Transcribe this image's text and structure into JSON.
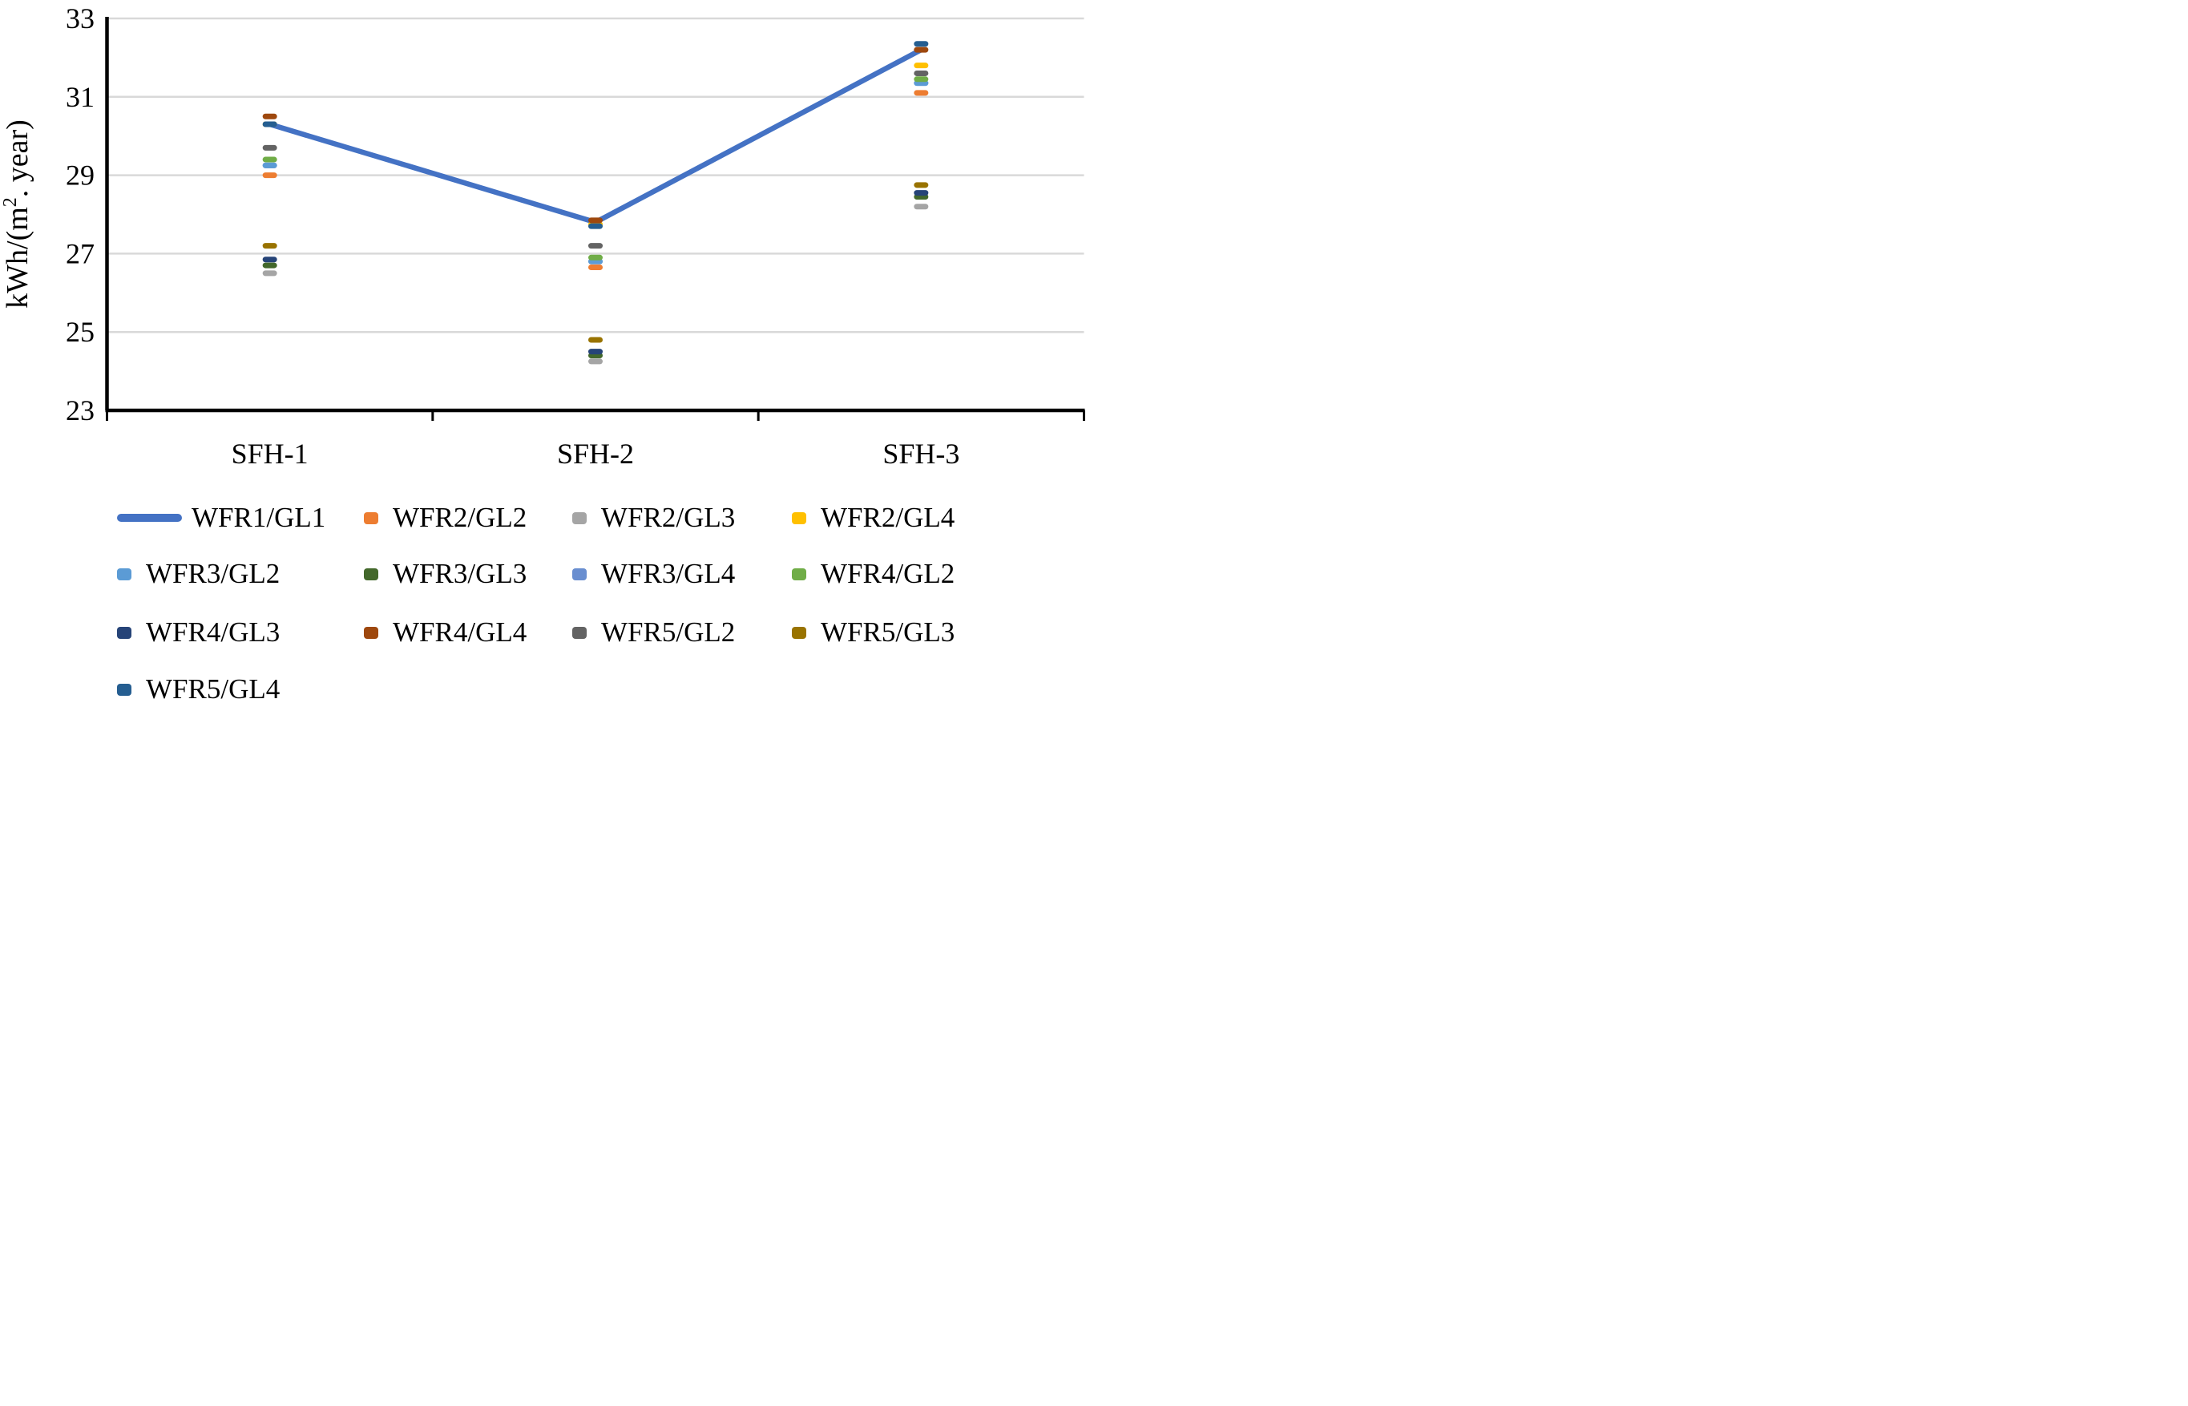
{
  "figure": {
    "y_axis": {
      "title_prefix": "kWh/(m",
      "title_sup": "2",
      "title_suffix": ". year)",
      "min": 23,
      "max": 33,
      "step": 2,
      "ticks": [
        "33",
        "31",
        "29",
        "27",
        "25",
        "23"
      ]
    },
    "x_axis": {
      "categories": [
        "SFH-1",
        "SFH-2",
        "SFH-3"
      ]
    },
    "grid_color": "#D9D9D9",
    "axis_color": "#000000",
    "background": "#FFFFFF"
  },
  "chart_data": {
    "type": "line",
    "subtype": "line-with-scatter-markers",
    "title": "",
    "xlabel": "",
    "ylabel": "kWh/(m2. year)",
    "ylim": [
      23,
      33
    ],
    "ytick_interval": 2,
    "grid": true,
    "legend_position": "bottom",
    "categories": [
      "SFH-1",
      "SFH-2",
      "SFH-3"
    ],
    "series": [
      {
        "name": "WFR1/GL1",
        "style": "line",
        "color": "#4472C4",
        "z": 1,
        "values": [
          30.3,
          27.8,
          32.2
        ]
      },
      {
        "name": "WFR2/GL2",
        "style": "marker",
        "color": "#ED7D31",
        "z": 2,
        "values": [
          29.0,
          26.65,
          31.1
        ]
      },
      {
        "name": "WFR2/GL3",
        "style": "marker",
        "color": "#A5A5A5",
        "z": 3,
        "values": [
          26.5,
          24.25,
          28.2
        ]
      },
      {
        "name": "WFR2/GL4",
        "style": "marker",
        "color": "#FFC000",
        "z": 4,
        "values": [
          30.3,
          27.75,
          31.8
        ]
      },
      {
        "name": "WFR3/GL2",
        "style": "marker",
        "color": "#5B9BD5",
        "z": 5,
        "values": [
          29.25,
          26.8,
          31.35
        ]
      },
      {
        "name": "WFR3/GL3",
        "style": "marker",
        "color": "#43682B",
        "z": 6,
        "values": [
          26.7,
          24.4,
          28.45
        ]
      },
      {
        "name": "WFR3/GL4",
        "style": "marker",
        "color": "#698ED0",
        "z": 4.5,
        "values": [
          29.25,
          26.8,
          31.35
        ]
      },
      {
        "name": "WFR4/GL2",
        "style": "marker",
        "color": "#70AD47",
        "z": 7,
        "values": [
          29.4,
          26.9,
          31.45
        ]
      },
      {
        "name": "WFR4/GL3",
        "style": "marker",
        "color": "#264478",
        "z": 8,
        "values": [
          26.85,
          24.5,
          28.55
        ]
      },
      {
        "name": "WFR4/GL4",
        "style": "marker",
        "color": "#9E480E",
        "z": 9,
        "values": [
          30.5,
          27.85,
          32.2
        ]
      },
      {
        "name": "WFR5/GL2",
        "style": "marker",
        "color": "#636363",
        "z": 10,
        "values": [
          29.7,
          27.2,
          31.6
        ]
      },
      {
        "name": "WFR5/GL3",
        "style": "marker",
        "color": "#997300",
        "z": 11,
        "values": [
          27.2,
          24.8,
          28.75
        ]
      },
      {
        "name": "WFR5/GL4",
        "style": "marker",
        "color": "#255E91",
        "z": 12,
        "values": [
          30.3,
          27.7,
          32.35
        ]
      }
    ]
  }
}
